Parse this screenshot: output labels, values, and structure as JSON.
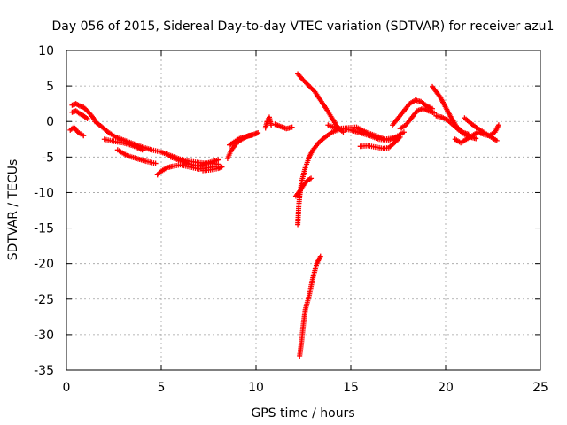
{
  "chart_data": {
    "type": "scatter",
    "title": "Day 056 of 2015, Sidereal Day-to-day VTEC variation (SDTVAR) for receiver azu1",
    "xlabel": "GPS time / hours",
    "ylabel": "SDTVAR / TECUs",
    "xlim": [
      0,
      25
    ],
    "ylim": [
      -35,
      10
    ],
    "xticks": [
      0,
      5,
      10,
      15,
      20,
      25
    ],
    "yticks": [
      -35,
      -30,
      -25,
      -20,
      -15,
      -10,
      -5,
      0,
      5,
      10
    ],
    "grid": true,
    "marker": "+",
    "series": [
      {
        "name": "SDTVAR",
        "color": "#ff0000",
        "segments": [
          [
            [
              0.2,
              -1.2
            ],
            [
              0.4,
              -0.8
            ],
            [
              0.6,
              -1.5
            ],
            [
              0.9,
              -2.0
            ]
          ],
          [
            [
              0.3,
              2.3
            ],
            [
              0.5,
              2.5
            ],
            [
              0.7,
              2.2
            ],
            [
              0.9,
              2.0
            ],
            [
              1.1,
              1.5
            ],
            [
              1.3,
              0.9
            ],
            [
              1.5,
              0.2
            ]
          ],
          [
            [
              0.3,
              1.3
            ],
            [
              0.5,
              1.5
            ],
            [
              0.7,
              1.1
            ],
            [
              0.9,
              0.8
            ],
            [
              1.1,
              0.4
            ]
          ],
          [
            [
              1.5,
              0.0
            ],
            [
              1.8,
              -0.6
            ],
            [
              2.2,
              -1.5
            ],
            [
              2.6,
              -2.2
            ],
            [
              3.0,
              -2.6
            ],
            [
              3.5,
              -3.1
            ],
            [
              4.0,
              -3.6
            ],
            [
              4.5,
              -4.0
            ],
            [
              5.0,
              -4.3
            ],
            [
              5.5,
              -4.8
            ],
            [
              6.0,
              -5.3
            ],
            [
              6.5,
              -5.6
            ],
            [
              7.0,
              -5.8
            ],
            [
              7.5,
              -5.9
            ],
            [
              8.0,
              -6.0
            ]
          ],
          [
            [
              2.0,
              -2.5
            ],
            [
              2.5,
              -2.8
            ],
            [
              3.0,
              -3.0
            ],
            [
              3.5,
              -3.4
            ],
            [
              4.0,
              -4.0
            ]
          ],
          [
            [
              2.7,
              -4.0
            ],
            [
              3.2,
              -4.8
            ],
            [
              3.7,
              -5.2
            ],
            [
              4.2,
              -5.6
            ],
            [
              4.7,
              -5.9
            ]
          ],
          [
            [
              4.8,
              -7.5
            ],
            [
              5.0,
              -7.0
            ],
            [
              5.3,
              -6.5
            ],
            [
              5.6,
              -6.3
            ],
            [
              6.0,
              -6.1
            ],
            [
              6.5,
              -6.4
            ],
            [
              7.0,
              -6.7
            ],
            [
              7.5,
              -6.5
            ],
            [
              8.0,
              -6.3
            ]
          ],
          [
            [
              5.5,
              -5.0
            ],
            [
              6.0,
              -5.5
            ],
            [
              6.5,
              -6.0
            ],
            [
              7.0,
              -6.3
            ],
            [
              7.5,
              -5.8
            ],
            [
              8.0,
              -5.4
            ]
          ],
          [
            [
              7.2,
              -6.9
            ],
            [
              7.6,
              -6.8
            ],
            [
              8.0,
              -6.6
            ],
            [
              8.2,
              -6.4
            ]
          ],
          [
            [
              8.5,
              -5.2
            ],
            [
              8.7,
              -4.0
            ],
            [
              9.0,
              -3.0
            ],
            [
              9.3,
              -2.4
            ],
            [
              9.6,
              -2.0
            ],
            [
              9.9,
              -1.8
            ],
            [
              10.1,
              -1.6
            ]
          ],
          [
            [
              8.6,
              -3.3
            ],
            [
              8.9,
              -2.8
            ],
            [
              9.2,
              -2.3
            ],
            [
              9.5,
              -2.1
            ],
            [
              9.8,
              -1.9
            ]
          ],
          [
            [
              10.5,
              -0.9
            ],
            [
              10.6,
              0.2
            ],
            [
              10.7,
              0.6
            ],
            [
              10.8,
              -0.5
            ]
          ],
          [
            [
              11.0,
              -0.4
            ],
            [
              11.3,
              -0.7
            ],
            [
              11.6,
              -1.0
            ],
            [
              11.9,
              -0.8
            ]
          ],
          [
            [
              12.2,
              6.7
            ],
            [
              12.5,
              5.8
            ],
            [
              12.8,
              5.0
            ],
            [
              13.1,
              4.2
            ],
            [
              13.4,
              3.0
            ],
            [
              13.7,
              1.8
            ],
            [
              14.0,
              0.5
            ],
            [
              14.3,
              -0.8
            ],
            [
              14.6,
              -1.5
            ]
          ],
          [
            [
              12.1,
              -10.5
            ],
            [
              12.3,
              -9.8
            ],
            [
              12.5,
              -9.0
            ],
            [
              12.7,
              -8.3
            ],
            [
              12.9,
              -8.0
            ]
          ],
          [
            [
              12.2,
              -14.5
            ],
            [
              12.25,
              -12.0
            ],
            [
              12.3,
              -10.5
            ],
            [
              12.4,
              -8.5
            ],
            [
              12.6,
              -6.5
            ],
            [
              12.8,
              -5.0
            ],
            [
              13.0,
              -4.0
            ],
            [
              13.3,
              -3.0
            ],
            [
              13.6,
              -2.3
            ],
            [
              14.0,
              -1.5
            ],
            [
              14.5,
              -1.0
            ],
            [
              15.0,
              -1.2
            ],
            [
              15.5,
              -1.6
            ],
            [
              16.0,
              -2.0
            ],
            [
              16.5,
              -2.5
            ],
            [
              17.0,
              -2.6
            ],
            [
              17.5,
              -2.2
            ]
          ],
          [
            [
              12.3,
              -33.0
            ],
            [
              12.4,
              -31.0
            ],
            [
              12.5,
              -28.5
            ],
            [
              12.6,
              -26.5
            ],
            [
              12.8,
              -24.5
            ],
            [
              13.0,
              -22.0
            ],
            [
              13.2,
              -20.0
            ],
            [
              13.4,
              -19.0
            ]
          ],
          [
            [
              13.8,
              -0.5
            ],
            [
              14.3,
              -1.0
            ],
            [
              14.8,
              -0.9
            ],
            [
              15.3,
              -0.8
            ],
            [
              15.8,
              -1.5
            ],
            [
              16.3,
              -2.0
            ],
            [
              16.8,
              -2.5
            ],
            [
              17.3,
              -2.3
            ],
            [
              17.8,
              -1.5
            ]
          ],
          [
            [
              15.5,
              -3.5
            ],
            [
              15.9,
              -3.4
            ],
            [
              16.3,
              -3.6
            ],
            [
              16.7,
              -3.8
            ],
            [
              17.0,
              -3.7
            ],
            [
              17.3,
              -3.0
            ],
            [
              17.6,
              -2.2
            ]
          ],
          [
            [
              17.2,
              -0.5
            ],
            [
              17.5,
              0.5
            ],
            [
              17.8,
              1.5
            ],
            [
              18.1,
              2.5
            ],
            [
              18.4,
              3.0
            ],
            [
              18.7,
              2.8
            ],
            [
              19.0,
              2.2
            ],
            [
              19.3,
              1.8
            ]
          ],
          [
            [
              17.6,
              -1.0
            ],
            [
              17.9,
              -0.5
            ],
            [
              18.2,
              0.5
            ],
            [
              18.5,
              1.5
            ],
            [
              18.8,
              1.8
            ],
            [
              19.1,
              1.5
            ],
            [
              19.4,
              1.2
            ]
          ],
          [
            [
              19.3,
              4.9
            ],
            [
              19.5,
              4.2
            ],
            [
              19.7,
              3.5
            ],
            [
              19.9,
              2.5
            ],
            [
              20.1,
              1.5
            ],
            [
              20.3,
              0.5
            ],
            [
              20.6,
              -0.8
            ],
            [
              20.9,
              -1.5
            ],
            [
              21.2,
              -1.8
            ]
          ],
          [
            [
              19.5,
              0.8
            ],
            [
              19.8,
              0.6
            ],
            [
              20.1,
              0.2
            ],
            [
              20.4,
              -0.5
            ],
            [
              20.7,
              -1.2
            ],
            [
              21.0,
              -1.8
            ],
            [
              21.3,
              -2.2
            ],
            [
              21.6,
              -2.4
            ]
          ],
          [
            [
              20.5,
              -2.5
            ],
            [
              20.8,
              -3.0
            ],
            [
              21.1,
              -2.5
            ],
            [
              21.4,
              -2.0
            ],
            [
              21.7,
              -1.5
            ],
            [
              22.0,
              -1.8
            ],
            [
              22.3,
              -2.0
            ],
            [
              22.6,
              -1.5
            ],
            [
              22.8,
              -0.5
            ]
          ],
          [
            [
              21.0,
              0.5
            ],
            [
              21.3,
              -0.2
            ],
            [
              21.7,
              -1.0
            ],
            [
              22.0,
              -1.5
            ],
            [
              22.4,
              -2.2
            ],
            [
              22.7,
              -2.7
            ]
          ]
        ]
      }
    ]
  }
}
